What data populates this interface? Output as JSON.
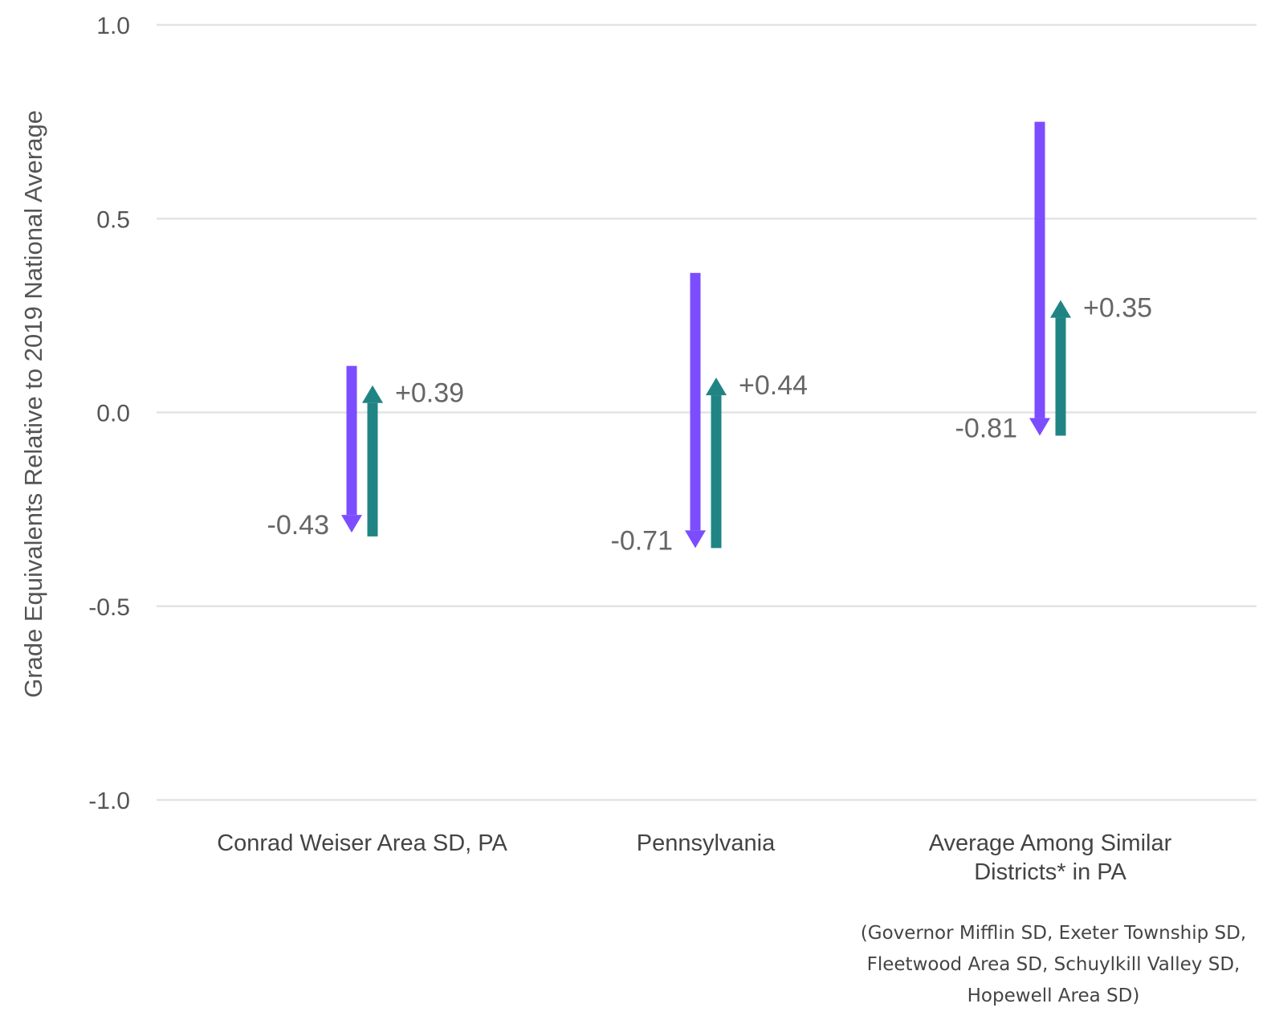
{
  "chart_data": {
    "type": "arrow",
    "ylabel": "Grade Equivalents Relative to 2019 National Average",
    "ylim": [
      -1.0,
      1.0
    ],
    "yticks": [
      "1.0",
      "0.5",
      "0.0",
      "-0.5",
      "-1.0"
    ],
    "grid": true,
    "categories": [
      {
        "lines": [
          "Conrad Weiser Area SD, PA"
        ],
        "note": []
      },
      {
        "lines": [
          "Pennsylvania"
        ],
        "note": []
      },
      {
        "lines": [
          "Average Among Similar",
          "Districts* in PA"
        ],
        "note": [
          "(Governor Mifflin SD, Exeter Township SD,",
          "Fleetwood Area SD, Schuylkill Valley SD,",
          "Hopewell Area SD)"
        ]
      }
    ],
    "series": [
      {
        "values": [
          {
            "start": 0.12,
            "end": -0.31,
            "label": "-0.43"
          },
          {
            "start": 0.36,
            "end": -0.35,
            "label": "-0.71"
          },
          {
            "start": 0.75,
            "end": -0.06,
            "label": "-0.81"
          }
        ]
      },
      {
        "values": [
          {
            "start": -0.32,
            "end": 0.07,
            "label": "+0.39"
          },
          {
            "start": -0.35,
            "end": 0.09,
            "label": "+0.44"
          },
          {
            "start": -0.06,
            "end": 0.29,
            "label": "+0.35"
          }
        ]
      }
    ],
    "colors": {
      "decline": "#7c4dff",
      "recovery": "#218484",
      "grid": "#e3e3e3"
    }
  }
}
